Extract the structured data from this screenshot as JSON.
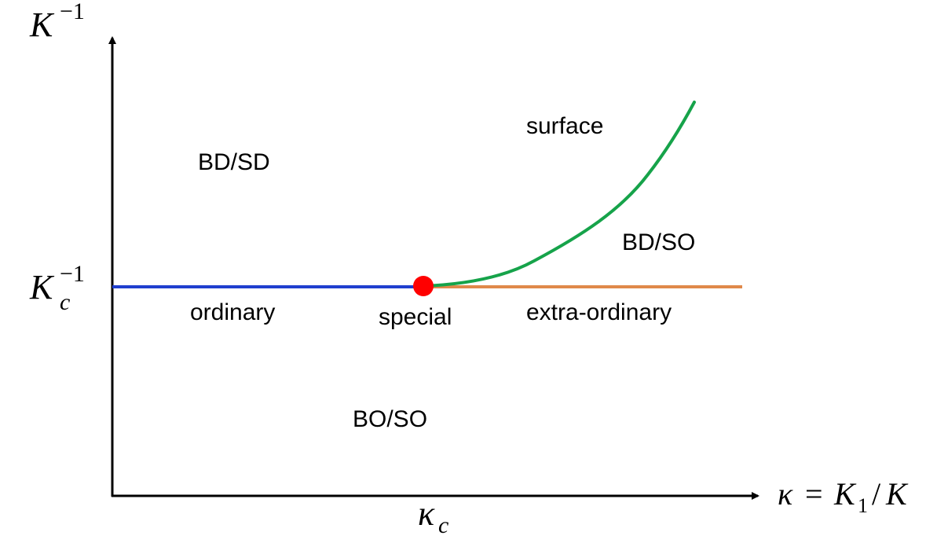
{
  "axes": {
    "y_label": {
      "base": "K",
      "sup": "−1"
    },
    "x_label": {
      "lhs": "κ",
      "eq": "=",
      "k": "K",
      "sub": "1",
      "slash": "/",
      "k2": "K"
    },
    "y_tick": {
      "base": "K",
      "sup": "−1",
      "sub": "c"
    },
    "x_tick": {
      "base": "κ",
      "sub": "c"
    }
  },
  "regions": {
    "bd_sd": "BD/SD",
    "bd_so": "BD/SO",
    "bo_so": "BO/SO",
    "surface": "surface"
  },
  "transitions": {
    "ordinary": "ordinary",
    "special": "special",
    "extra_ordinary": "extra-ordinary"
  },
  "colors": {
    "ordinary_line": "#1f3fcf",
    "extra_ordinary_line": "#e0894a",
    "surface_line": "#16a34a",
    "special_point": "#ff0000",
    "axis": "#000000"
  }
}
